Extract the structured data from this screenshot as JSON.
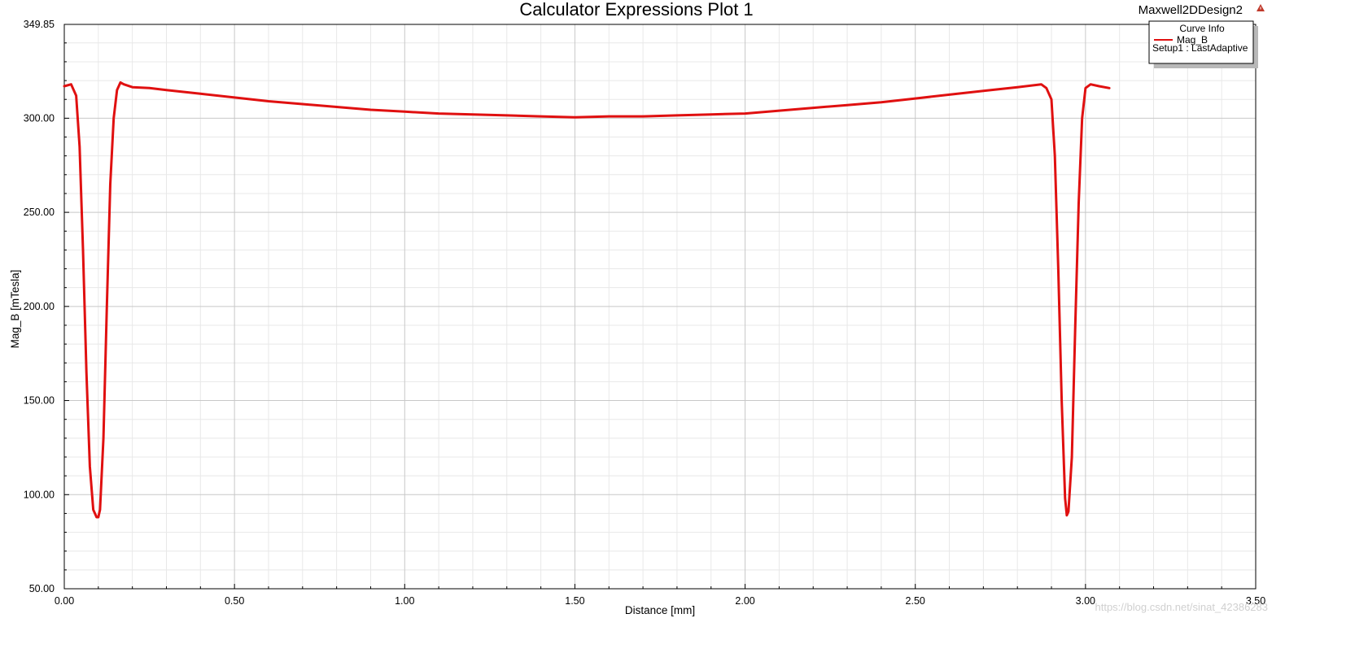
{
  "window": {
    "design_name": "Maxwell2DDesign2"
  },
  "legend": {
    "title": "Curve Info",
    "series_label": "Mag_B",
    "setup_label": "Setup1 : LastAdaptive"
  },
  "watermark": "https://blog.csdn.net/sinat_42386283",
  "colors": {
    "series": "#e01010",
    "grid_major": "#c8c8c8",
    "grid_minor": "#e8e8e8",
    "accent_icon": "#c0392b"
  },
  "icons": {
    "design_marker": "warning-triangle-icon"
  },
  "chart_data": {
    "type": "line",
    "title": "Calculator Expressions Plot 1",
    "xlabel": "Distance [mm]",
    "ylabel": "Mag_B [mTesla]",
    "xlim": [
      0,
      3.5
    ],
    "ylim": [
      50,
      349.85
    ],
    "x_ticks": [
      "0.00",
      "0.50",
      "1.00",
      "1.50",
      "2.00",
      "2.50",
      "3.00",
      "3.50"
    ],
    "y_ticks": [
      "50.00",
      "100.00",
      "150.00",
      "200.00",
      "250.00",
      "300.00",
      "349.85"
    ],
    "grid": true,
    "legend_position": "top-right",
    "series": [
      {
        "name": "Mag_B",
        "color": "#e01010",
        "x": [
          0.0,
          0.02,
          0.035,
          0.045,
          0.055,
          0.065,
          0.075,
          0.085,
          0.095,
          0.1,
          0.105,
          0.115,
          0.125,
          0.135,
          0.145,
          0.155,
          0.165,
          0.175,
          0.2,
          0.25,
          0.3,
          0.4,
          0.5,
          0.6,
          0.7,
          0.8,
          0.9,
          1.0,
          1.1,
          1.2,
          1.3,
          1.4,
          1.5,
          1.6,
          1.7,
          1.8,
          1.9,
          2.0,
          2.1,
          2.2,
          2.3,
          2.4,
          2.5,
          2.6,
          2.7,
          2.8,
          2.87,
          2.885,
          2.9,
          2.91,
          2.92,
          2.93,
          2.94,
          2.945,
          2.95,
          2.96,
          2.97,
          2.98,
          2.99,
          3.0,
          3.015,
          3.04,
          3.07
        ],
        "y": [
          317,
          318,
          312,
          285,
          230,
          165,
          115,
          92,
          88,
          88,
          92,
          130,
          200,
          265,
          300,
          315,
          319,
          318,
          316.5,
          316,
          315,
          313,
          311,
          309,
          307.5,
          306,
          304.5,
          303.5,
          302.5,
          302,
          301.5,
          301,
          300.5,
          301,
          301,
          301.5,
          302,
          302.5,
          304,
          305.5,
          307,
          308.5,
          310.5,
          312.5,
          314.5,
          316.5,
          318,
          316,
          310,
          280,
          220,
          150,
          98,
          89,
          91,
          120,
          190,
          255,
          300,
          316,
          318,
          317,
          316
        ]
      }
    ]
  }
}
